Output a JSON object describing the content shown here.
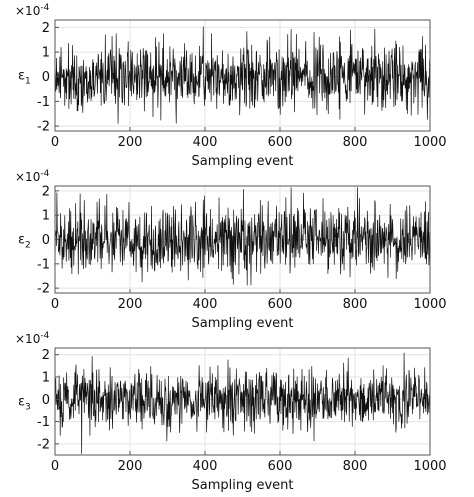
{
  "chart_data": [
    {
      "type": "line",
      "ylabel_symbol": "ε",
      "ylabel_subscript": "1",
      "xlabel": "Sampling event",
      "exponent_base": "×10",
      "exponent_power": "-4",
      "xlim": [
        0,
        1000
      ],
      "ylim": [
        -2.2,
        2.3
      ],
      "xticks": [
        0,
        200,
        400,
        600,
        800,
        1000
      ],
      "yticks": [
        -2,
        -1,
        0,
        1,
        2
      ],
      "xtick_labels": [
        "0",
        "200",
        "400",
        "600",
        "800",
        "1000"
      ],
      "ytick_labels": [
        "-2",
        "-1",
        "0",
        "1",
        "2"
      ],
      "grid": true,
      "series": [
        {
          "n_points": 1000,
          "seed": 11,
          "sigma": 0.85,
          "min": -2.1,
          "max": 2.35
        }
      ]
    },
    {
      "type": "line",
      "ylabel_symbol": "ε",
      "ylabel_subscript": "2",
      "xlabel": "Sampling event",
      "exponent_base": "×10",
      "exponent_power": "-4",
      "xlim": [
        0,
        1000
      ],
      "ylim": [
        -2.2,
        2.2
      ],
      "xticks": [
        0,
        200,
        400,
        600,
        800,
        1000
      ],
      "yticks": [
        -2,
        -1,
        0,
        1,
        2
      ],
      "xtick_labels": [
        "0",
        "200",
        "400",
        "600",
        "800",
        "1000"
      ],
      "ytick_labels": [
        "-2",
        "-1",
        "0",
        "1",
        "2"
      ],
      "grid": true,
      "series": [
        {
          "n_points": 1000,
          "seed": 23,
          "sigma": 0.85,
          "min": -2.2,
          "max": 2.15
        }
      ]
    },
    {
      "type": "line",
      "ylabel_symbol": "ε",
      "ylabel_subscript": "3",
      "xlabel": "Sampling event",
      "exponent_base": "×10",
      "exponent_power": "-4",
      "xlim": [
        0,
        1000
      ],
      "ylim": [
        -2.5,
        2.3
      ],
      "xticks": [
        0,
        200,
        400,
        600,
        800,
        1000
      ],
      "yticks": [
        -2,
        -1,
        0,
        1,
        2
      ],
      "xtick_labels": [
        "0",
        "200",
        "400",
        "600",
        "800",
        "1000"
      ],
      "ytick_labels": [
        "-2",
        "-1",
        "0",
        "1",
        "2"
      ],
      "grid": true,
      "series": [
        {
          "n_points": 1000,
          "seed": 37,
          "sigma": 0.85,
          "min": -2.45,
          "max": 2.25
        }
      ]
    }
  ]
}
